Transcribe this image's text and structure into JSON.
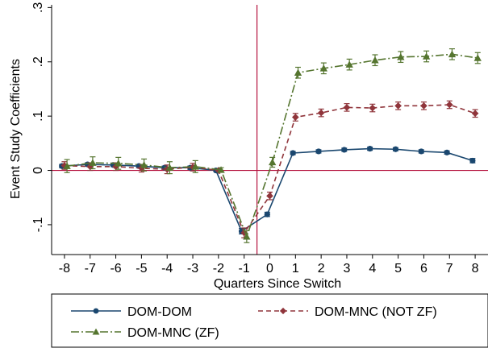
{
  "chart_data": {
    "type": "line",
    "xlabel": "Quarters Since Switch",
    "ylabel": "Event Study Coefficients",
    "x": [
      -8,
      -7,
      -6,
      -5,
      -4,
      -3,
      -2,
      -1,
      0,
      1,
      2,
      3,
      4,
      5,
      6,
      7,
      8
    ],
    "xlim": [
      -8.5,
      8.5
    ],
    "ylim": [
      -0.155,
      0.305
    ],
    "y_ticks": [
      -0.1,
      0,
      0.1,
      0.2,
      0.3
    ],
    "y_tick_labels": [
      "-.1",
      "0",
      ".1",
      ".2",
      ".3"
    ],
    "x_tick_labels": [
      "-8",
      "-7",
      "-6",
      "-5",
      "-4",
      "-3",
      "-2",
      "-1",
      "0",
      "1",
      "2",
      "3",
      "4",
      "5",
      "6",
      "7",
      "8"
    ],
    "grid": false,
    "reference_lines": {
      "vertical_x": -0.5,
      "horizontal_y": 0,
      "color": "#b5123e"
    },
    "legend_placement": "bottom",
    "series": [
      {
        "name": "DOM-DOM",
        "color": "#1a476f",
        "marker": "circle",
        "dash": "solid",
        "offset": -0.1,
        "values": [
          0.008,
          0.011,
          0.01,
          0.008,
          0.005,
          0.005,
          0,
          -0.112,
          -0.081,
          0.032,
          0.035,
          0.038,
          0.04,
          0.039,
          0.035,
          0.033,
          0.018
        ],
        "ci_lower": [
          0.005,
          0.008,
          0.007,
          0.005,
          0.002,
          0.002,
          0,
          -0.117,
          -0.085,
          0.029,
          0.032,
          0.035,
          0.037,
          0.036,
          0.032,
          0.03,
          0.014
        ],
        "ci_upper": [
          0.011,
          0.014,
          0.013,
          0.011,
          0.008,
          0.008,
          0,
          -0.107,
          -0.077,
          0.035,
          0.038,
          0.041,
          0.043,
          0.042,
          0.038,
          0.036,
          0.022
        ]
      },
      {
        "name": "DOM-MNC (NOT ZF)",
        "color": "#90353b",
        "marker": "diamond",
        "dash": "6,4",
        "offset": 0,
        "values": [
          0.009,
          0.007,
          0.007,
          0.004,
          0.002,
          0.006,
          0,
          -0.115,
          -0.047,
          0.098,
          0.106,
          0.116,
          0.115,
          0.119,
          0.119,
          0.121,
          0.105
        ],
        "ci_lower": [
          0.002,
          0.0,
          0.0,
          -0.003,
          -0.006,
          -0.001,
          0,
          -0.124,
          -0.054,
          0.091,
          0.099,
          0.109,
          0.108,
          0.112,
          0.112,
          0.114,
          0.098
        ],
        "ci_upper": [
          0.016,
          0.014,
          0.014,
          0.011,
          0.01,
          0.013,
          0,
          -0.106,
          -0.04,
          0.105,
          0.113,
          0.123,
          0.122,
          0.126,
          0.126,
          0.128,
          0.112
        ]
      },
      {
        "name": "DOM-MNC (ZF)",
        "color": "#55752f",
        "marker": "triangle",
        "dash": "10,3,2,3",
        "offset": 0.1,
        "values": [
          0.008,
          0.014,
          0.013,
          0.01,
          0.005,
          0.007,
          0.001,
          -0.122,
          0.015,
          0.18,
          0.188,
          0.195,
          0.203,
          0.209,
          0.21,
          0.214,
          0.207
        ],
        "ci_lower": [
          -0.004,
          0.003,
          0.002,
          -0.001,
          -0.006,
          -0.004,
          -0.003,
          -0.133,
          0.006,
          0.17,
          0.178,
          0.185,
          0.193,
          0.199,
          0.2,
          0.204,
          0.197
        ],
        "ci_upper": [
          0.02,
          0.025,
          0.024,
          0.021,
          0.016,
          0.018,
          0.005,
          -0.111,
          0.024,
          0.19,
          0.198,
          0.205,
          0.213,
          0.219,
          0.22,
          0.224,
          0.217
        ]
      }
    ]
  }
}
